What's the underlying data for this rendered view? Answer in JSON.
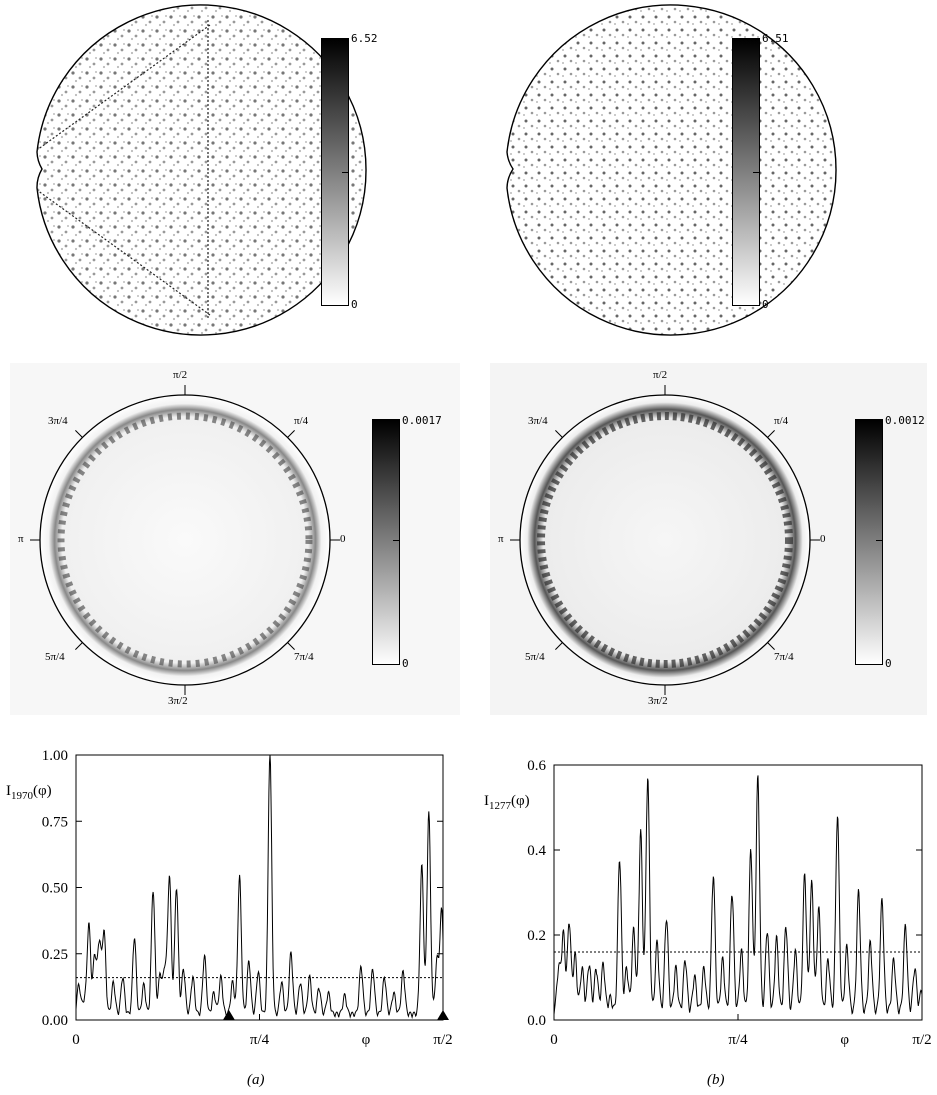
{
  "billiard_a": {
    "colorbar_max": "6.52",
    "colorbar_min": "0"
  },
  "billiard_b": {
    "colorbar_max": "6.51",
    "colorbar_min": "0"
  },
  "husimi_a": {
    "colorbar_max": "0.0017",
    "colorbar_min": "0",
    "angles": [
      "π/2",
      "π/4",
      "0",
      "7π/4",
      "3π/2",
      "5π/4",
      "π",
      "3π/4"
    ]
  },
  "husimi_b": {
    "colorbar_max": "0.0012",
    "colorbar_min": "0",
    "angles": [
      "π/2",
      "π/4",
      "0",
      "7π/4",
      "3π/2",
      "5π/4",
      "π",
      "3π/4"
    ]
  },
  "chart_data": [
    {
      "type": "line",
      "ylabel": "I1970(φ)",
      "xlabel": "φ",
      "xticks": [
        "0",
        "π/4",
        "π/2"
      ],
      "yticks": [
        "0.00",
        "0.25",
        "0.50",
        "0.75",
        "1.00"
      ],
      "xlim": [
        0,
        1.5708
      ],
      "ylim": [
        0,
        1.0
      ],
      "reference_line": 0.16,
      "markers_x": [
        0.6545,
        1.5708
      ],
      "peaks": [
        [
          0.012,
          0.11
        ],
        [
          0.035,
          0.05
        ],
        [
          0.055,
          0.34
        ],
        [
          0.08,
          0.22
        ],
        [
          0.1,
          0.27
        ],
        [
          0.12,
          0.31
        ],
        [
          0.16,
          0.12
        ],
        [
          0.2,
          0.14
        ],
        [
          0.25,
          0.29
        ],
        [
          0.29,
          0.11
        ],
        [
          0.33,
          0.47
        ],
        [
          0.36,
          0.15
        ],
        [
          0.38,
          0.17
        ],
        [
          0.4,
          0.52
        ],
        [
          0.43,
          0.48
        ],
        [
          0.46,
          0.17
        ],
        [
          0.5,
          0.14
        ],
        [
          0.55,
          0.22
        ],
        [
          0.59,
          0.08
        ],
        [
          0.62,
          0.14
        ],
        [
          0.67,
          0.12
        ],
        [
          0.7,
          0.52
        ],
        [
          0.74,
          0.2
        ],
        [
          0.78,
          0.16
        ],
        [
          0.83,
          0.99
        ],
        [
          0.88,
          0.12
        ],
        [
          0.92,
          0.23
        ],
        [
          0.96,
          0.12
        ],
        [
          1.0,
          0.14
        ],
        [
          1.04,
          0.1
        ],
        [
          1.08,
          0.08
        ],
        [
          1.15,
          0.07
        ],
        [
          1.22,
          0.18
        ],
        [
          1.27,
          0.17
        ],
        [
          1.32,
          0.14
        ],
        [
          1.36,
          0.08
        ],
        [
          1.4,
          0.16
        ],
        [
          1.48,
          0.56
        ],
        [
          1.51,
          0.76
        ],
        [
          1.545,
          0.2
        ],
        [
          1.565,
          0.39
        ]
      ]
    },
    {
      "type": "line",
      "ylabel": "I1277(φ)",
      "xlabel": "φ",
      "xticks": [
        "0",
        "π/4",
        "π/2"
      ],
      "yticks": [
        "0.0",
        "0.2",
        "0.4",
        "0.6"
      ],
      "xlim": [
        0,
        1.5708
      ],
      "ylim": [
        0,
        0.6
      ],
      "reference_line": 0.16,
      "peaks": [
        [
          0.02,
          0.1
        ],
        [
          0.04,
          0.18
        ],
        [
          0.065,
          0.21
        ],
        [
          0.09,
          0.13
        ],
        [
          0.12,
          0.1
        ],
        [
          0.15,
          0.11
        ],
        [
          0.18,
          0.1
        ],
        [
          0.21,
          0.11
        ],
        [
          0.24,
          0.03
        ],
        [
          0.28,
          0.36
        ],
        [
          0.31,
          0.1
        ],
        [
          0.34,
          0.19
        ],
        [
          0.37,
          0.42
        ],
        [
          0.4,
          0.55
        ],
        [
          0.44,
          0.16
        ],
        [
          0.48,
          0.22
        ],
        [
          0.52,
          0.1
        ],
        [
          0.56,
          0.12
        ],
        [
          0.6,
          0.08
        ],
        [
          0.64,
          0.1
        ],
        [
          0.68,
          0.32
        ],
        [
          0.72,
          0.12
        ],
        [
          0.76,
          0.28
        ],
        [
          0.8,
          0.14
        ],
        [
          0.84,
          0.38
        ],
        [
          0.87,
          0.55
        ],
        [
          0.91,
          0.19
        ],
        [
          0.95,
          0.17
        ],
        [
          0.99,
          0.2
        ],
        [
          1.03,
          0.14
        ],
        [
          1.07,
          0.32
        ],
        [
          1.1,
          0.3
        ],
        [
          1.13,
          0.24
        ],
        [
          1.17,
          0.12
        ],
        [
          1.21,
          0.46
        ],
        [
          1.25,
          0.15
        ],
        [
          1.3,
          0.28
        ],
        [
          1.35,
          0.16
        ],
        [
          1.4,
          0.26
        ],
        [
          1.45,
          0.12
        ],
        [
          1.5,
          0.2
        ],
        [
          1.54,
          0.1
        ],
        [
          1.57,
          0.05
        ]
      ]
    }
  ],
  "captions": {
    "a": "(a)",
    "b": "(b)"
  }
}
